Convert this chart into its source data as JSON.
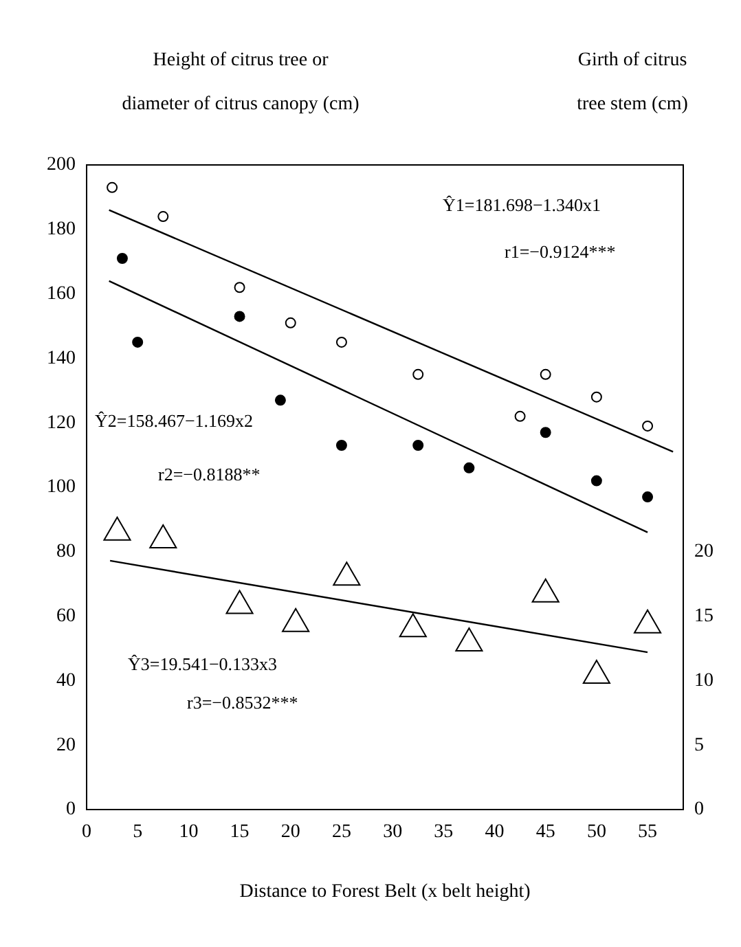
{
  "chart_data": {
    "type": "scatter",
    "xlabel": "Distance to Forest Belt (x belt height)",
    "ylabel": "Height of citrus tree or\ndiameter of citrus canopy (cm)",
    "y2label": "Girth of citrus\ntree stem (cm)",
    "xlim": [
      0,
      58.5
    ],
    "xticks": [
      0,
      5,
      10,
      15,
      20,
      25,
      30,
      35,
      40,
      45,
      50,
      55
    ],
    "ylim": [
      0,
      200
    ],
    "yticks": [
      0,
      20,
      40,
      60,
      80,
      100,
      120,
      140,
      160,
      180,
      200
    ],
    "y2lim": [
      0,
      50
    ],
    "y2ticks": [
      0,
      5,
      10,
      15,
      20
    ],
    "grid": false,
    "legend": false,
    "series": [
      {
        "marker": "circle",
        "color": "#ffffff",
        "x": [
          2.5,
          7.5,
          15,
          20,
          25,
          32.5,
          42.5,
          45,
          50,
          55
        ],
        "values": [
          193,
          184,
          162,
          151,
          145,
          135,
          122,
          135,
          128,
          119
        ]
      },
      {
        "marker": "circle",
        "color": "#000000",
        "x": [
          3.5,
          5,
          15,
          19,
          25,
          32.5,
          37.5,
          45,
          50,
          55
        ],
        "values": [
          171,
          145,
          153,
          127,
          113,
          113,
          106,
          117,
          102,
          97
        ]
      },
      {
        "marker": "triangle",
        "axis": "y2",
        "color": "#ffffff",
        "x": [
          3,
          7.5,
          15,
          20.5,
          25.5,
          32,
          37.5,
          45,
          50,
          55
        ],
        "values": [
          21.5,
          20.9,
          15.8,
          14.4,
          18.0,
          14.0,
          12.9,
          16.7,
          10.4,
          14.3
        ]
      },
      {
        "type": "line",
        "marker": "none",
        "color": "#000000",
        "x": [
          2.2,
          57.5
        ],
        "values": [
          186,
          111
        ]
      },
      {
        "type": "line",
        "marker": "none",
        "color": "#000000",
        "x": [
          2.2,
          55
        ],
        "values": [
          164,
          86
        ]
      },
      {
        "type": "line",
        "marker": "none",
        "axis": "y2",
        "color": "#000000",
        "x": [
          2.3,
          55
        ],
        "values": [
          19.3,
          12.2
        ]
      }
    ],
    "annotations": [
      "Ŷ1=181.698−1.340x1",
      "r1=−0.9124***",
      "Ŷ2=158.467−1.169x2",
      "r2=−0.8188**",
      "Ŷ3=19.541−0.133x3",
      "r3=−0.8532***"
    ]
  }
}
